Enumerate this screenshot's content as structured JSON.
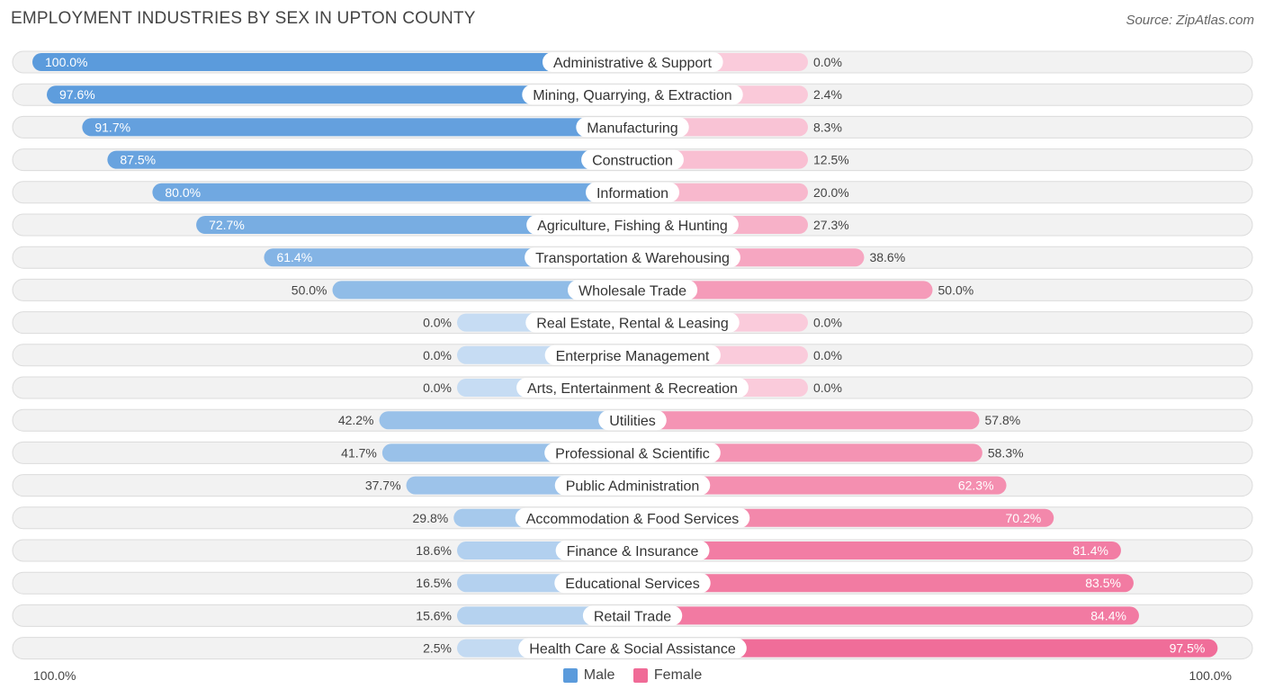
{
  "title": "EMPLOYMENT INDUSTRIES BY SEX IN UPTON COUNTY",
  "source": "Source: ZipAtlas.com",
  "axis": {
    "left_label": "100.0%",
    "right_label": "100.0%"
  },
  "legend": [
    {
      "name": "Male",
      "color": "#5b9bdc"
    },
    {
      "name": "Female",
      "color": "#f06b97"
    }
  ],
  "chart_data": {
    "type": "bar",
    "orientation": "horizontal-diverging",
    "title": "EMPLOYMENT INDUSTRIES BY SEX IN UPTON COUNTY",
    "xlim": [
      0,
      100
    ],
    "categories": [
      "Administrative & Support",
      "Mining, Quarrying, & Extraction",
      "Manufacturing",
      "Construction",
      "Information",
      "Agriculture, Fishing & Hunting",
      "Transportation & Warehousing",
      "Wholesale Trade",
      "Real Estate, Rental & Leasing",
      "Enterprise Management",
      "Arts, Entertainment & Recreation",
      "Utilities",
      "Professional & Scientific",
      "Public Administration",
      "Accommodation & Food Services",
      "Finance & Insurance",
      "Educational Services",
      "Retail Trade",
      "Health Care & Social Assistance"
    ],
    "series": [
      {
        "name": "Male",
        "values": [
          100.0,
          97.6,
          91.7,
          87.5,
          80.0,
          72.7,
          61.4,
          50.0,
          0.0,
          0.0,
          0.0,
          42.2,
          41.7,
          37.7,
          29.8,
          18.6,
          16.5,
          15.6,
          2.5
        ],
        "labels": [
          "100.0%",
          "97.6%",
          "91.7%",
          "87.5%",
          "80.0%",
          "72.7%",
          "61.4%",
          "50.0%",
          "0.0%",
          "0.0%",
          "0.0%",
          "42.2%",
          "41.7%",
          "37.7%",
          "29.8%",
          "18.6%",
          "16.5%",
          "15.6%",
          "2.5%"
        ]
      },
      {
        "name": "Female",
        "values": [
          0.0,
          2.4,
          8.3,
          12.5,
          20.0,
          27.3,
          38.6,
          50.0,
          0.0,
          0.0,
          0.0,
          57.8,
          58.3,
          62.3,
          70.2,
          81.4,
          83.5,
          84.4,
          97.5
        ],
        "labels": [
          "0.0%",
          "2.4%",
          "8.3%",
          "12.5%",
          "20.0%",
          "27.3%",
          "38.6%",
          "50.0%",
          "0.0%",
          "0.0%",
          "0.0%",
          "57.8%",
          "58.3%",
          "62.3%",
          "70.2%",
          "81.4%",
          "83.5%",
          "84.4%",
          "97.5%"
        ]
      }
    ]
  }
}
